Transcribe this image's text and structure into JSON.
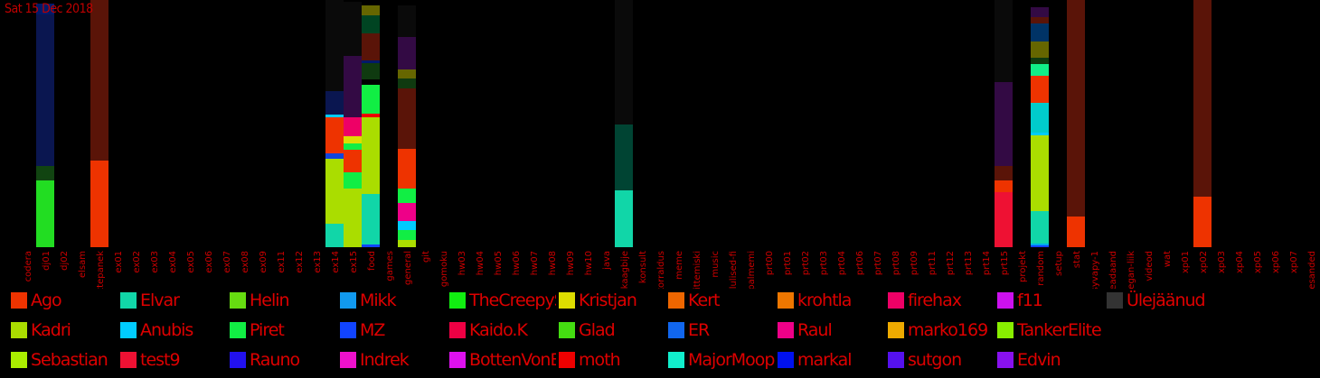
{
  "date_label": "Sat 15 Dec 2018",
  "chart_data": {
    "type": "bar",
    "stacked": true,
    "categories": [
      "codera",
      "dj01",
      "dj02",
      "elsam",
      "ettepanek",
      "ex01",
      "ex02",
      "ex03",
      "ex04",
      "ex05",
      "ex06",
      "ex07",
      "ex08",
      "ex09",
      "ex11",
      "ex12",
      "ex13",
      "ex14",
      "ex15",
      "food",
      "games",
      "general",
      "git",
      "gomoku",
      "hw03",
      "hw04",
      "hw05",
      "hw06",
      "hw07",
      "hw08",
      "hw09",
      "hw10",
      "java",
      "kaagbije",
      "konsult",
      "korraldus",
      "meme",
      "mittemiski",
      "music",
      "olulised-fi",
      "palmemi",
      "prt00",
      "prt01",
      "prt02",
      "prt03",
      "prt04",
      "prt06",
      "prt07",
      "prt08",
      "prt09",
      "prt11",
      "prt12",
      "prt13",
      "prt14",
      "prt15",
      "projekt",
      "random",
      "setup",
      "stat",
      "syvapy-1",
      "teadaand",
      "vegan-liik",
      "videod",
      "wat",
      "xp01",
      "xp02",
      "xp03",
      "xp04",
      "xp05",
      "xp06",
      "xp07",
      "ülesanded"
    ],
    "stacks": {
      "dj01": [
        [
          "#22dd22",
          74
        ],
        [
          "#114411",
          16
        ],
        [
          "#0a1650",
          168
        ],
        [
          "#001a6a",
          12
        ]
      ],
      "ettepanek": [
        [
          "#ee3300",
          96
        ],
        [
          "#5a1408",
          178
        ]
      ],
      "ex14": [
        [
          "#11d6a8",
          26
        ],
        [
          "#aadd00",
          72
        ],
        [
          "#1144dd",
          6
        ],
        [
          "#ee3300",
          40
        ],
        [
          "#00ccff",
          3
        ],
        [
          "#0a1650",
          26
        ],
        [
          "#0a0a0a",
          101
        ]
      ],
      "ex15": [
        [
          "#aadd00",
          65
        ],
        [
          "#11ee44",
          18
        ],
        [
          "#ee3300",
          25
        ],
        [
          "#11ee44",
          7
        ],
        [
          "#dddd00",
          8
        ],
        [
          "#ee0066",
          21
        ],
        [
          "#330a44",
          68
        ],
        [
          "#0a0a0a",
          60
        ]
      ],
      "food": [
        [
          "#1144ff",
          3
        ],
        [
          "#11d6a8",
          56
        ],
        [
          "#aadd00",
          85
        ],
        [
          "#ee0000",
          4
        ],
        [
          "#11ee44",
          32
        ],
        [
          "#000000",
          6
        ],
        [
          "#0f3a10",
          18
        ],
        [
          "#001a6a",
          3
        ],
        [
          "#5a1408",
          30
        ],
        [
          "#004422",
          20
        ],
        [
          "#666600",
          11
        ]
      ],
      "general": [
        [
          "#aadd00",
          8
        ],
        [
          "#11ee44",
          11
        ],
        [
          "#00ccff",
          10
        ],
        [
          "#ee0088",
          20
        ],
        [
          "#11ee44",
          16
        ],
        [
          "#ee3300",
          44
        ],
        [
          "#5a1408",
          67
        ],
        [
          "#0f3a10",
          11
        ],
        [
          "#666600",
          10
        ],
        [
          "#330a44",
          36
        ],
        [
          "#0a0a0a",
          35
        ]
      ],
      "kaagbije": [
        [
          "#11d6a8",
          63
        ],
        [
          "#004433",
          73
        ],
        [
          "#0a0a0a",
          138
        ]
      ],
      "prt15": [
        [
          "#ee1133",
          61
        ],
        [
          "#ee3300",
          13
        ],
        [
          "#5a1408",
          16
        ],
        [
          "#330a44",
          93
        ],
        [
          "#0a0a0a",
          91
        ]
      ],
      "random": [
        [
          "#1144ff",
          2
        ],
        [
          "#00aaee",
          2
        ],
        [
          "#11d6a8",
          36
        ],
        [
          "#aadd00",
          84
        ],
        [
          "#00ccff",
          3
        ],
        [
          "#00cccc",
          33
        ],
        [
          "#ee3300",
          30
        ],
        [
          "#11ee88",
          13
        ],
        [
          "#0f3a10",
          7
        ],
        [
          "#666600",
          18
        ],
        [
          "#003366",
          20
        ],
        [
          "#5a1408",
          7
        ],
        [
          "#330a44",
          11
        ]
      ],
      "stat": [
        [
          "#ee3300",
          34
        ],
        [
          "#5a1408",
          240
        ]
      ],
      "xp02": [
        [
          "#ee3300",
          56
        ],
        [
          "#5a1408",
          218
        ]
      ]
    },
    "ylim": [
      0,
      274
    ],
    "legend": [
      {
        "name": "Ago",
        "color": "#ee3300"
      },
      {
        "name": "Elvar",
        "color": "#11d6a8"
      },
      {
        "name": "Helin",
        "color": "#66dd11"
      },
      {
        "name": "Mikk",
        "color": "#1199ee"
      },
      {
        "name": "TheCreepySheep",
        "color": "#11ee11"
      },
      {
        "name": "Kristjan",
        "color": "#dddd00"
      },
      {
        "name": "Kert",
        "color": "#ee6600"
      },
      {
        "name": "krohtla",
        "color": "#ee7700"
      },
      {
        "name": "firehax",
        "color": "#ee0066"
      },
      {
        "name": "f11",
        "color": "#cc11ee"
      },
      {
        "name": "Ülejäänud",
        "color": "#333333"
      },
      {
        "name": "Kadri",
        "color": "#aadd00"
      },
      {
        "name": "Anubis",
        "color": "#00ccff"
      },
      {
        "name": "Piret",
        "color": "#11ee44"
      },
      {
        "name": "MZ",
        "color": "#1144ff"
      },
      {
        "name": "Kaido.K",
        "color": "#ee0044"
      },
      {
        "name": "Glad",
        "color": "#44dd11"
      },
      {
        "name": "ER",
        "color": "#1166ee"
      },
      {
        "name": "Raul",
        "color": "#ee0088"
      },
      {
        "name": "marko169",
        "color": "#eeaa00"
      },
      {
        "name": "TankerElite",
        "color": "#88ee00"
      },
      {
        "name": "Sebastian",
        "color": "#aaee00"
      },
      {
        "name": "test9",
        "color": "#ee1133"
      },
      {
        "name": "Rauno",
        "color": "#2211ee"
      },
      {
        "name": "Indrek",
        "color": "#ee11cc"
      },
      {
        "name": "BottenVonBot",
        "color": "#dd11ee"
      },
      {
        "name": "moth",
        "color": "#ee0000"
      },
      {
        "name": "MajorMoopsy",
        "color": "#11eecc"
      },
      {
        "name": "markal",
        "color": "#0011ee"
      },
      {
        "name": "sutgon",
        "color": "#5511ee"
      },
      {
        "name": "Edvin",
        "color": "#8811ee"
      }
    ]
  }
}
